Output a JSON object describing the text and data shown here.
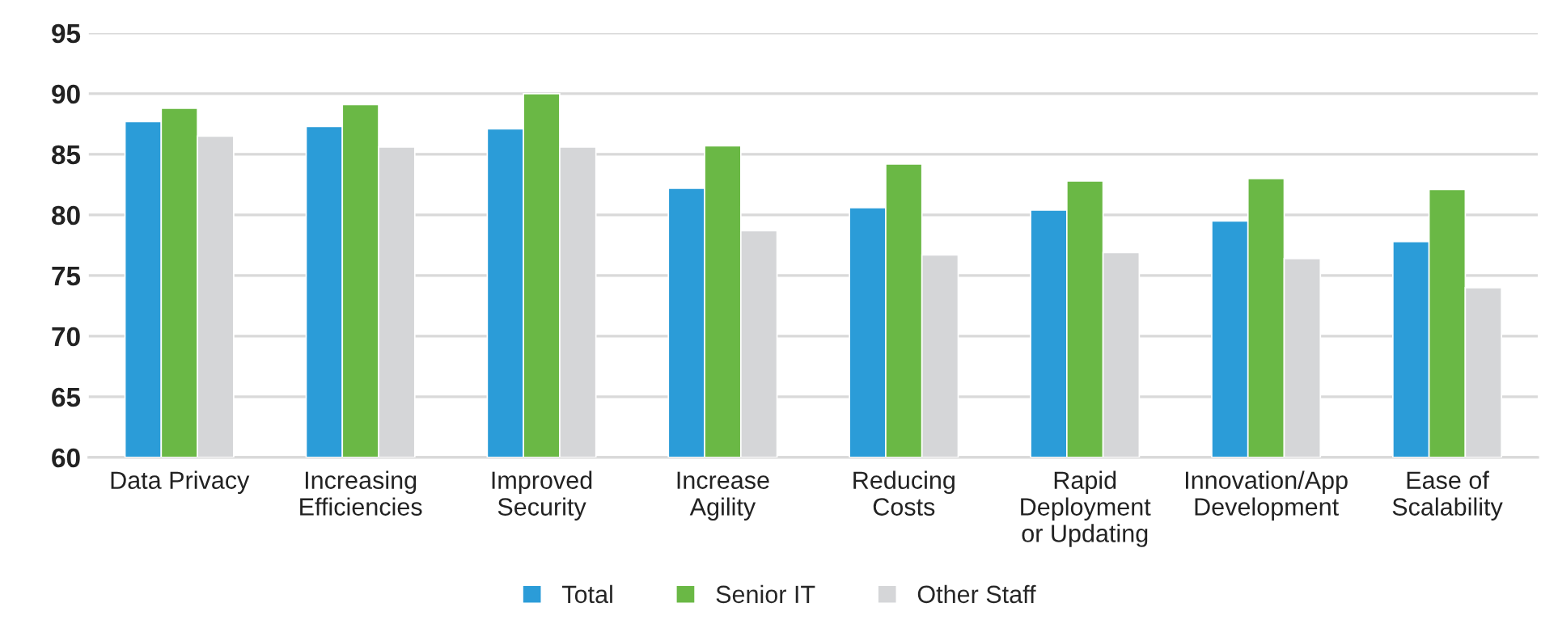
{
  "chart_data": {
    "type": "bar",
    "categories": [
      "Data Privacy",
      "Increasing\nEfficiencies",
      "Improved\nSecurity",
      "Increase\nAgility",
      "Reducing\nCosts",
      "Rapid\nDeployment\nor Updating",
      "Innovation/App\nDevelopment",
      "Ease of\nScalability"
    ],
    "series": [
      {
        "name": "Total",
        "color": "#2b9cd8",
        "values": [
          87.7,
          87.3,
          87.1,
          82.2,
          80.6,
          80.4,
          79.5,
          77.8
        ]
      },
      {
        "name": "Senior IT",
        "color": "#6ab845",
        "values": [
          88.8,
          89.1,
          90.0,
          85.7,
          84.2,
          82.8,
          83.0,
          82.1
        ]
      },
      {
        "name": "Other Staff",
        "color": "#d5d6d8",
        "values": [
          86.5,
          85.6,
          85.6,
          78.7,
          76.7,
          76.9,
          76.4,
          74.0
        ]
      }
    ],
    "ylim": [
      60,
      95
    ],
    "yticks": [
      60,
      65,
      70,
      75,
      80,
      85,
      90,
      95
    ],
    "grid": "y",
    "legend": "bottom"
  }
}
